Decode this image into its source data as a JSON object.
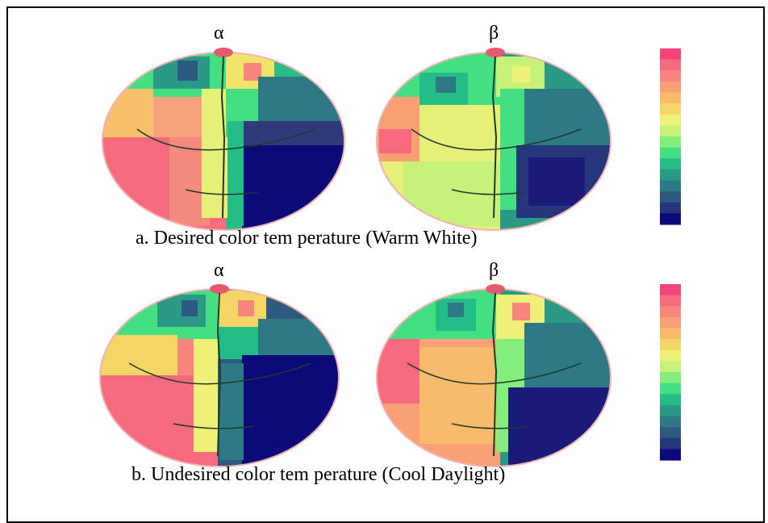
{
  "figure": {
    "row_a": {
      "left_label": "α",
      "right_label": "β",
      "caption": "a. Desired color tem perature (Warm White)"
    },
    "row_b": {
      "left_label": "α",
      "right_label": "β",
      "caption": "b. Undesired color tem perature (Cool Daylight)"
    },
    "colorbar_colors": [
      "#f4457a",
      "#f66a7d",
      "#f8867d",
      "#f9a076",
      "#f8bb6c",
      "#f4d667",
      "#eef077",
      "#c6f27b",
      "#84ee7c",
      "#44df82",
      "#25bd87",
      "#2a9a87",
      "#2d7a86",
      "#2f5a80",
      "#26367a",
      "#0c0a78"
    ]
  }
}
